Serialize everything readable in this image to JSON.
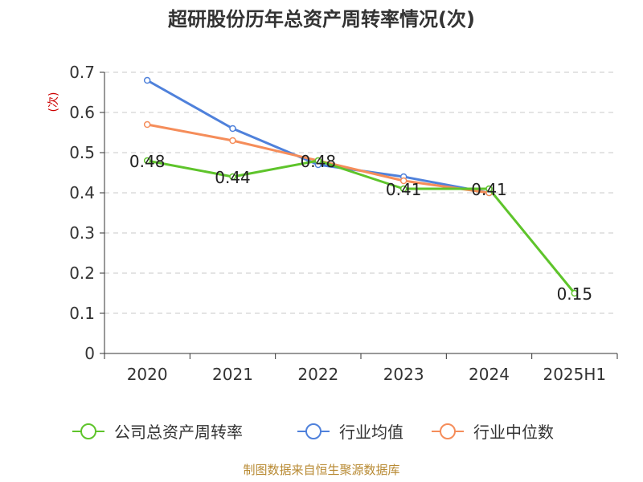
{
  "chart_data": {
    "type": "line",
    "title": "超研股份历年总资产周转率情况(次)",
    "ylabel": "(次)",
    "xlabel": "",
    "categories": [
      "2020",
      "2021",
      "2022",
      "2023",
      "2024",
      "2025H1"
    ],
    "ylim": [
      0,
      0.7
    ],
    "yticks": [
      "0",
      "0.1",
      "0.2",
      "0.3",
      "0.4",
      "0.5",
      "0.6",
      "0.7"
    ],
    "grid": true,
    "legend_position": "bottom",
    "series": [
      {
        "name": "公司总资产周转率",
        "color": "#5ec42b",
        "values": [
          0.48,
          0.44,
          0.48,
          0.41,
          0.41,
          0.15
        ],
        "labels": [
          "0.48",
          "0.44",
          "0.48",
          "0.41",
          "0.41",
          "0.15"
        ]
      },
      {
        "name": "行业均值",
        "color": "#4f81db",
        "values": [
          0.68,
          0.56,
          0.47,
          0.44,
          0.4,
          null
        ]
      },
      {
        "name": "行业中位数",
        "color": "#f58d5a",
        "values": [
          0.57,
          0.53,
          0.48,
          0.43,
          0.4,
          null
        ]
      }
    ]
  },
  "source": "制图数据来自恒生聚源数据库"
}
